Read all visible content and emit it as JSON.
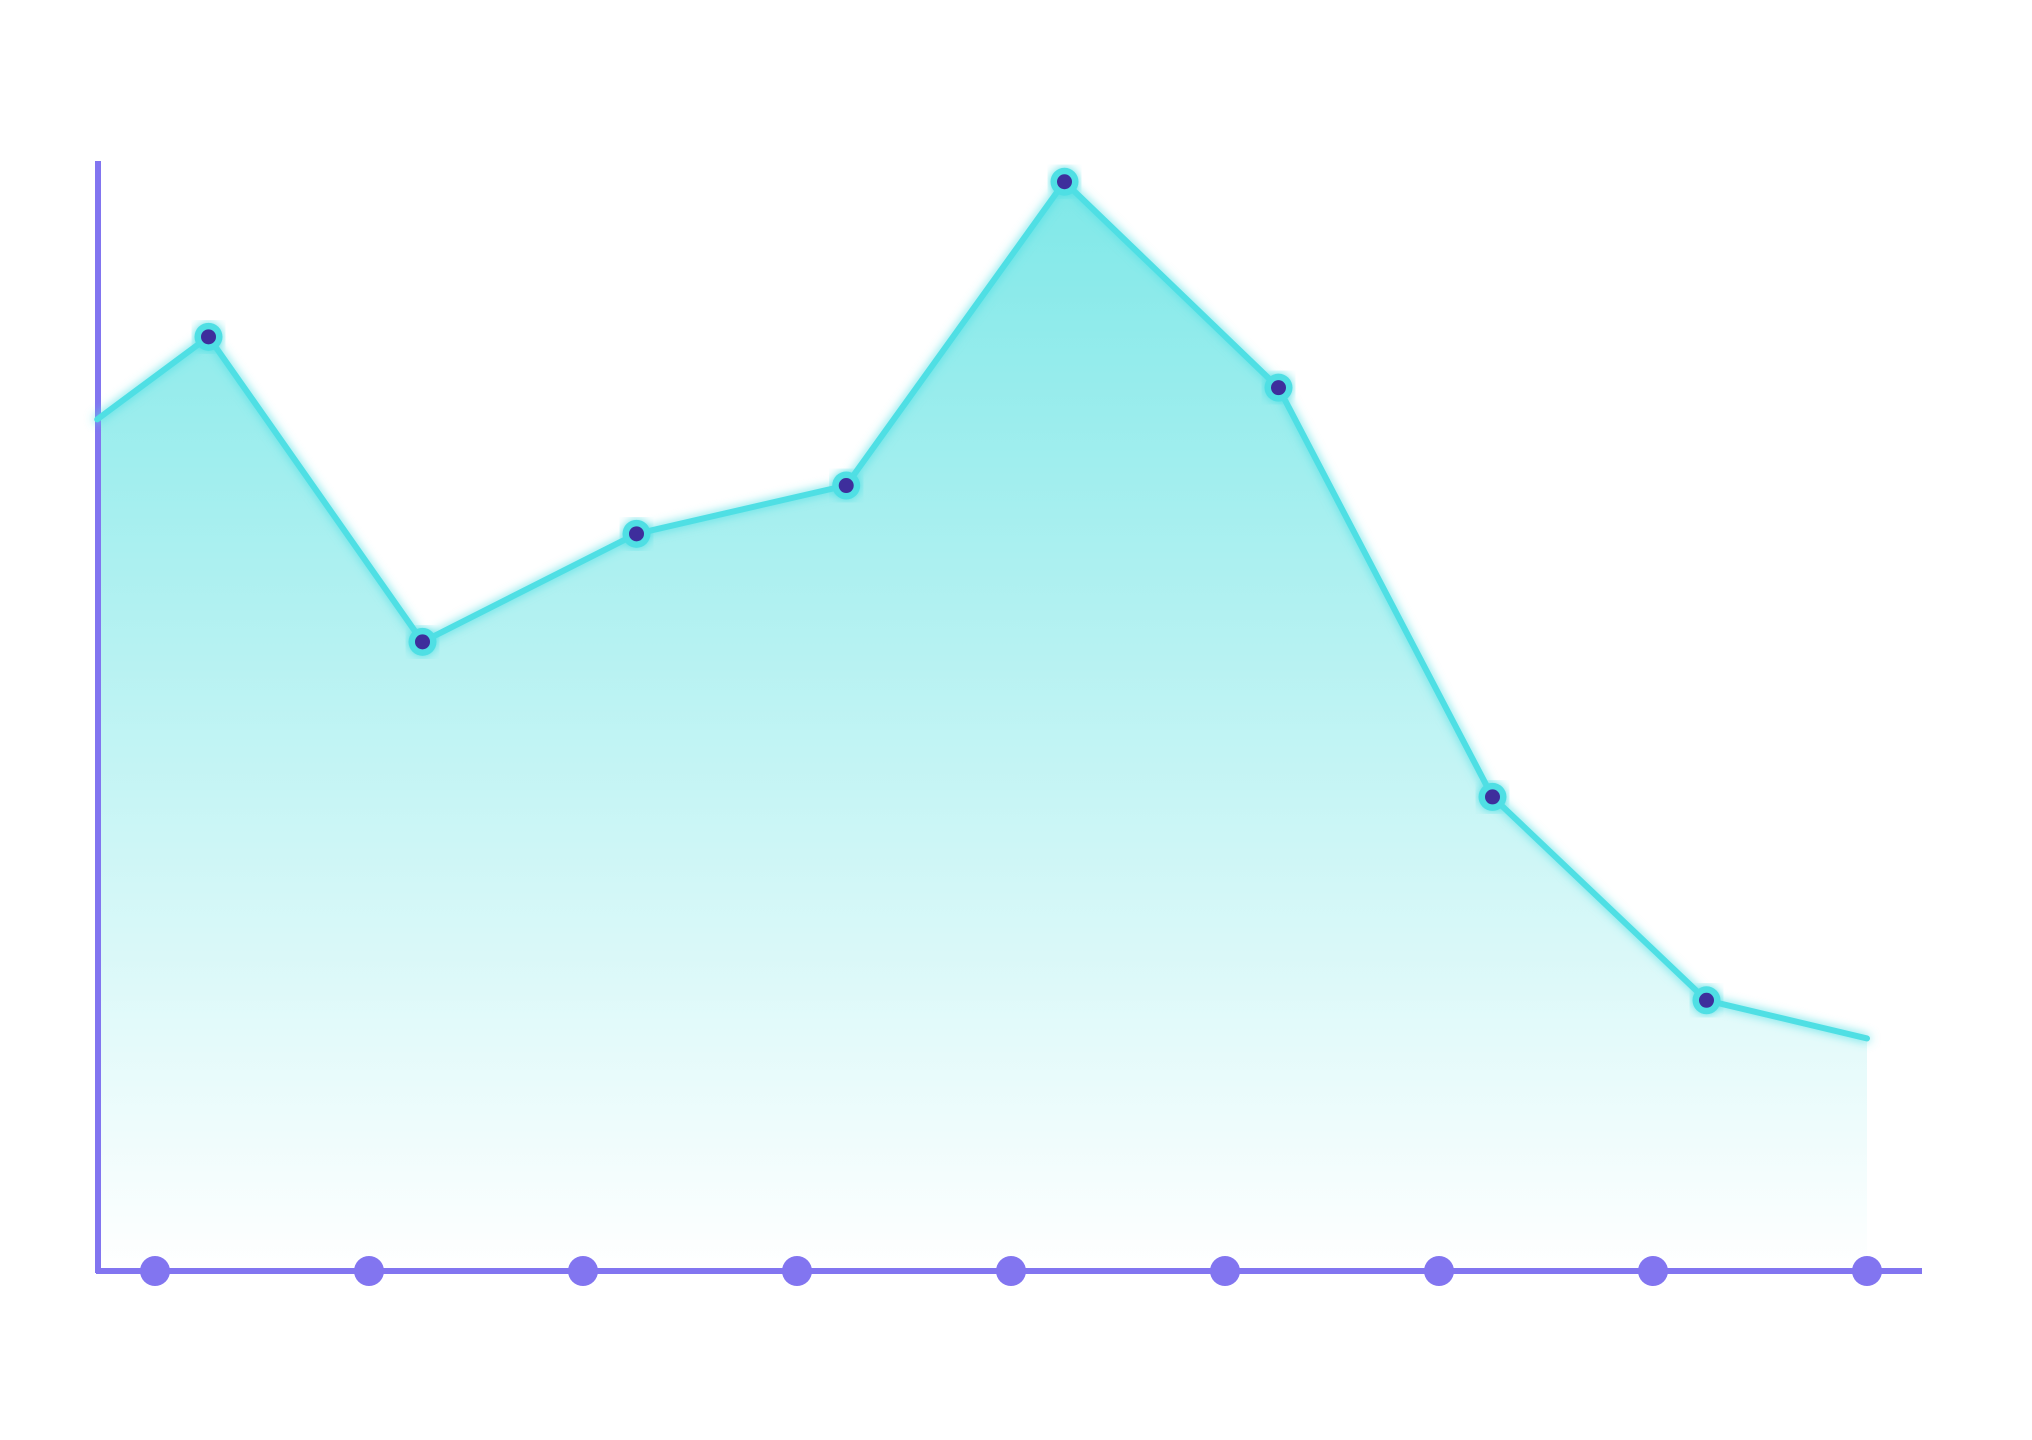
{
  "chart_data": {
    "type": "area",
    "title": "",
    "xlabel": "",
    "ylabel": "",
    "x": [
      0,
      1,
      2,
      3,
      4,
      5,
      6,
      7,
      8
    ],
    "series": [
      {
        "x": [
          -0.27,
          0.25,
          1.25,
          2.25,
          3.23,
          4.25,
          5.25,
          6.25,
          7.25,
          8.0
        ],
        "values": [
          67,
          73.5,
          49.5,
          58,
          61.8,
          85.7,
          69.5,
          37.3,
          21.3,
          18.3
        ],
        "marker_x": [
          0.25,
          1.25,
          2.25,
          3.23,
          4.25,
          5.25,
          6.25,
          7.25
        ],
        "marker_values": [
          73.5,
          49.5,
          58,
          61.8,
          85.7,
          69.5,
          37.3,
          21.3
        ]
      }
    ],
    "xlim": [
      -0.27,
      8.0
    ],
    "ylim": [
      0,
      100
    ],
    "grid": false,
    "legend": "none",
    "colors": {
      "axis": "#8275f0",
      "tick_dot": "#8275f0",
      "line": "#4fdfe4",
      "fill_top": "#7fe8e8",
      "fill_bottom": "#ffffff",
      "marker_ring": "#4fdfe4",
      "marker_center": "#3e2e9c"
    }
  }
}
